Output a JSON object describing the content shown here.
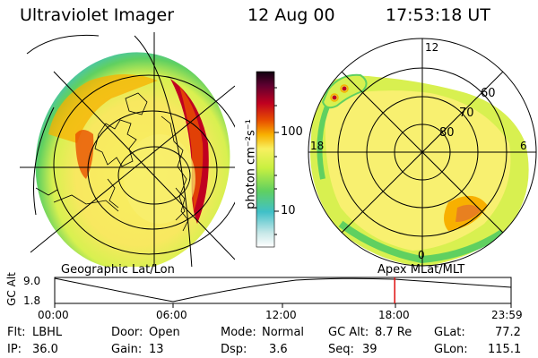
{
  "header": {
    "title": "Ultraviolet Imager",
    "date": "12 Aug 00",
    "time": "17:53:18 UT"
  },
  "left_panel": {
    "caption": "Geographic Lat/Lon"
  },
  "right_panel": {
    "caption": "Apex  MLat/MLT",
    "lat_labels": [
      "60",
      "70",
      "80"
    ],
    "mlt_labels": {
      "top": "12",
      "left": "18",
      "right": "6",
      "bottom": "0"
    }
  },
  "colorbar": {
    "unit_label": "photon cm⁻²s⁻¹",
    "ticks": [
      "100",
      "10"
    ],
    "colors": [
      "#ffffff",
      "#c8e8e8",
      "#40c0c8",
      "#60d060",
      "#c8f040",
      "#f8f060",
      "#f8b000",
      "#e85000",
      "#c00020",
      "#600030",
      "#100010"
    ]
  },
  "altitude_plot": {
    "ylabel": "GC Alt",
    "ymax": "9.0",
    "ymin": "1.8",
    "xticks": [
      "00:00",
      "06:00",
      "12:00",
      "18:00",
      "23:59"
    ],
    "current_time_fraction": 0.745
  },
  "status": {
    "flt_label": "Flt:",
    "flt_value": "LBHL",
    "ip_label": "IP:",
    "ip_value": "36.0",
    "door_label": "Door:",
    "door_value": "Open",
    "gain_label": "Gain:",
    "gain_value": "13",
    "mode_label": "Mode:",
    "mode_value": "Normal",
    "dsp_label": "Dsp:",
    "dsp_value": "3.6",
    "gcalt_label": "GC Alt:",
    "gcalt_value": "8.7 Re",
    "seq_label": "Seq:",
    "seq_value": "39",
    "glat_label": "GLat:",
    "glat_value": "77.2",
    "glon_label": "GLon:",
    "glon_value": "115.1"
  }
}
